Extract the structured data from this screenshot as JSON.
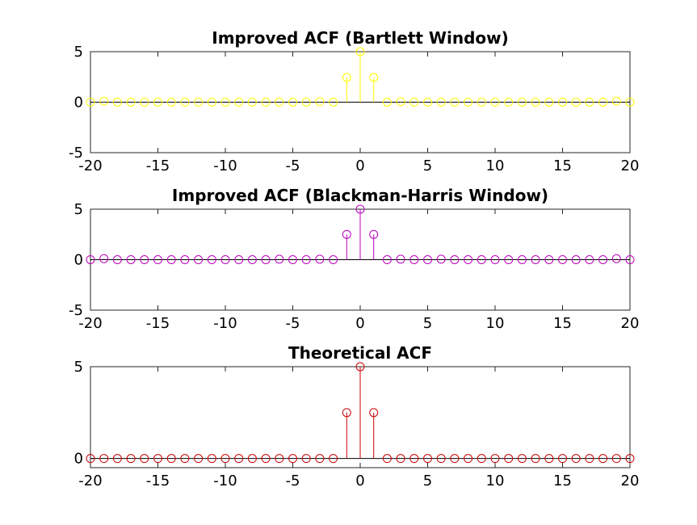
{
  "chart_data": [
    {
      "type": "stem",
      "title": "Improved ACF (Bartlett Window)",
      "color": "#ffff00",
      "xlim": [
        -20,
        20
      ],
      "ylim": [
        -5,
        5
      ],
      "xticks": [
        -20,
        -15,
        -10,
        -5,
        0,
        5,
        10,
        15,
        20
      ],
      "yticks": [
        -5,
        0,
        5
      ],
      "x": [
        -20,
        -19,
        -18,
        -17,
        -16,
        -15,
        -14,
        -13,
        -12,
        -11,
        -10,
        -9,
        -8,
        -7,
        -6,
        -5,
        -4,
        -3,
        -2,
        -1,
        0,
        1,
        2,
        3,
        4,
        5,
        6,
        7,
        8,
        9,
        10,
        11,
        12,
        13,
        14,
        15,
        16,
        17,
        18,
        19,
        20
      ],
      "values": [
        0,
        0.1,
        0,
        0,
        0,
        0,
        0,
        0,
        0,
        0,
        0,
        0,
        0,
        0,
        0,
        0,
        0,
        0.05,
        0,
        2.45,
        5.0,
        2.45,
        0,
        0.05,
        0,
        0,
        0,
        0,
        0,
        0,
        0,
        0,
        0,
        0,
        0,
        0,
        0,
        0,
        0,
        0.1,
        0
      ]
    },
    {
      "type": "stem",
      "title": "Improved ACF (Blackman-Harris Window)",
      "color": "#bf00bf",
      "xlim": [
        -20,
        20
      ],
      "ylim": [
        -5,
        5
      ],
      "xticks": [
        -20,
        -15,
        -10,
        -5,
        0,
        5,
        10,
        15,
        20
      ],
      "yticks": [
        -5,
        0,
        5
      ],
      "x": [
        -20,
        -19,
        -18,
        -17,
        -16,
        -15,
        -14,
        -13,
        -12,
        -11,
        -10,
        -9,
        -8,
        -7,
        -6,
        -5,
        -4,
        -3,
        -2,
        -1,
        0,
        1,
        2,
        3,
        4,
        5,
        6,
        7,
        8,
        9,
        10,
        11,
        12,
        13,
        14,
        15,
        16,
        17,
        18,
        19,
        20
      ],
      "values": [
        0,
        0.1,
        0,
        0,
        0,
        0,
        0,
        0,
        0,
        0,
        0,
        0,
        0,
        0,
        0.05,
        0,
        0,
        0.05,
        0,
        2.5,
        5.0,
        2.5,
        0,
        0.05,
        0,
        0,
        0.05,
        0,
        0,
        0,
        0,
        0,
        0,
        0,
        0,
        0,
        0,
        0,
        0,
        0.1,
        0
      ]
    },
    {
      "type": "stem",
      "title": "Theoretical ACF",
      "color": "#cc0000",
      "xlim": [
        -20,
        20
      ],
      "ylim": [
        -0.5,
        5
      ],
      "xticks": [
        -20,
        -15,
        -10,
        -5,
        0,
        5,
        10,
        15,
        20
      ],
      "yticks": [
        0,
        5
      ],
      "x": [
        -20,
        -19,
        -18,
        -17,
        -16,
        -15,
        -14,
        -13,
        -12,
        -11,
        -10,
        -9,
        -8,
        -7,
        -6,
        -5,
        -4,
        -3,
        -2,
        -1,
        0,
        1,
        2,
        3,
        4,
        5,
        6,
        7,
        8,
        9,
        10,
        11,
        12,
        13,
        14,
        15,
        16,
        17,
        18,
        19,
        20
      ],
      "values": [
        0,
        0,
        0,
        0,
        0,
        0,
        0,
        0,
        0,
        0,
        0,
        0,
        0,
        0,
        0,
        0,
        0,
        0,
        0,
        2.5,
        5.0,
        2.5,
        0,
        0,
        0,
        0,
        0,
        0,
        0,
        0,
        0,
        0,
        0,
        0,
        0,
        0,
        0,
        0,
        0,
        0,
        0
      ]
    }
  ]
}
